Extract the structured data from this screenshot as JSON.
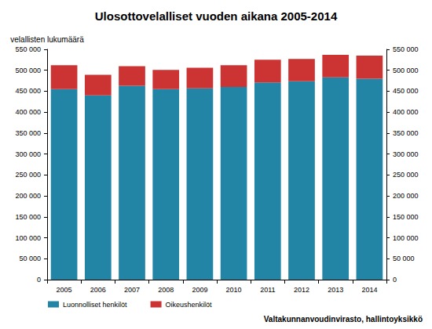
{
  "chart_data": {
    "type": "bar",
    "title": "Ulosottovelalliset vuoden aikana 2005-2014",
    "ylabel": "velallisten lukumäärä",
    "annotations": [
      "Valtakunnanvoudinvirasto, hallintoyksikkö"
    ],
    "categories": [
      "2005",
      "2006",
      "2007",
      "2008",
      "2009",
      "2010",
      "2011",
      "2012",
      "2013",
      "2014"
    ],
    "series": [
      {
        "name": "Luonnolliset henkilöt",
        "color": "#2385a6",
        "values": [
          455000,
          440000,
          463000,
          455000,
          457000,
          460000,
          471000,
          474000,
          483000,
          480000
        ]
      },
      {
        "name": "Oikeushenkilöt",
        "color": "#cc3333",
        "values": [
          57000,
          49000,
          47000,
          46000,
          49000,
          52000,
          54000,
          53000,
          54000,
          55000
        ]
      }
    ],
    "stacked": true,
    "grid": false,
    "legend": "bottom-left",
    "ylim": [
      0,
      550000
    ],
    "yticks": [
      {
        "value": 0,
        "label": "0"
      },
      {
        "value": 50000,
        "label": "50 000"
      },
      {
        "value": 100000,
        "label": "100 000"
      },
      {
        "value": 150000,
        "label": "150 000"
      },
      {
        "value": 200000,
        "label": "200 000"
      },
      {
        "value": 250000,
        "label": "250 000"
      },
      {
        "value": 300000,
        "label": "300 000"
      },
      {
        "value": 350000,
        "label": "350 000"
      },
      {
        "value": 400000,
        "label": "400 000"
      },
      {
        "value": 450000,
        "label": "450 000"
      },
      {
        "value": 500000,
        "label": "500 000"
      },
      {
        "value": 550000,
        "label": "550 000"
      }
    ],
    "y2lim": [
      0,
      550000
    ],
    "y2ticks": [
      {
        "value": 0,
        "label": "0"
      },
      {
        "value": 50000,
        "label": "50 000"
      },
      {
        "value": 100000,
        "label": "100 000"
      },
      {
        "value": 150000,
        "label": "150 000"
      },
      {
        "value": 200000,
        "label": "200 000"
      },
      {
        "value": 250000,
        "label": "250 000"
      },
      {
        "value": 300000,
        "label": "300 000"
      },
      {
        "value": 350000,
        "label": "350 000"
      },
      {
        "value": 400000,
        "label": "400 000"
      },
      {
        "value": 450000,
        "label": "450 000"
      },
      {
        "value": 500000,
        "label": "500 000"
      },
      {
        "value": 550000,
        "label": "550 000"
      }
    ]
  }
}
